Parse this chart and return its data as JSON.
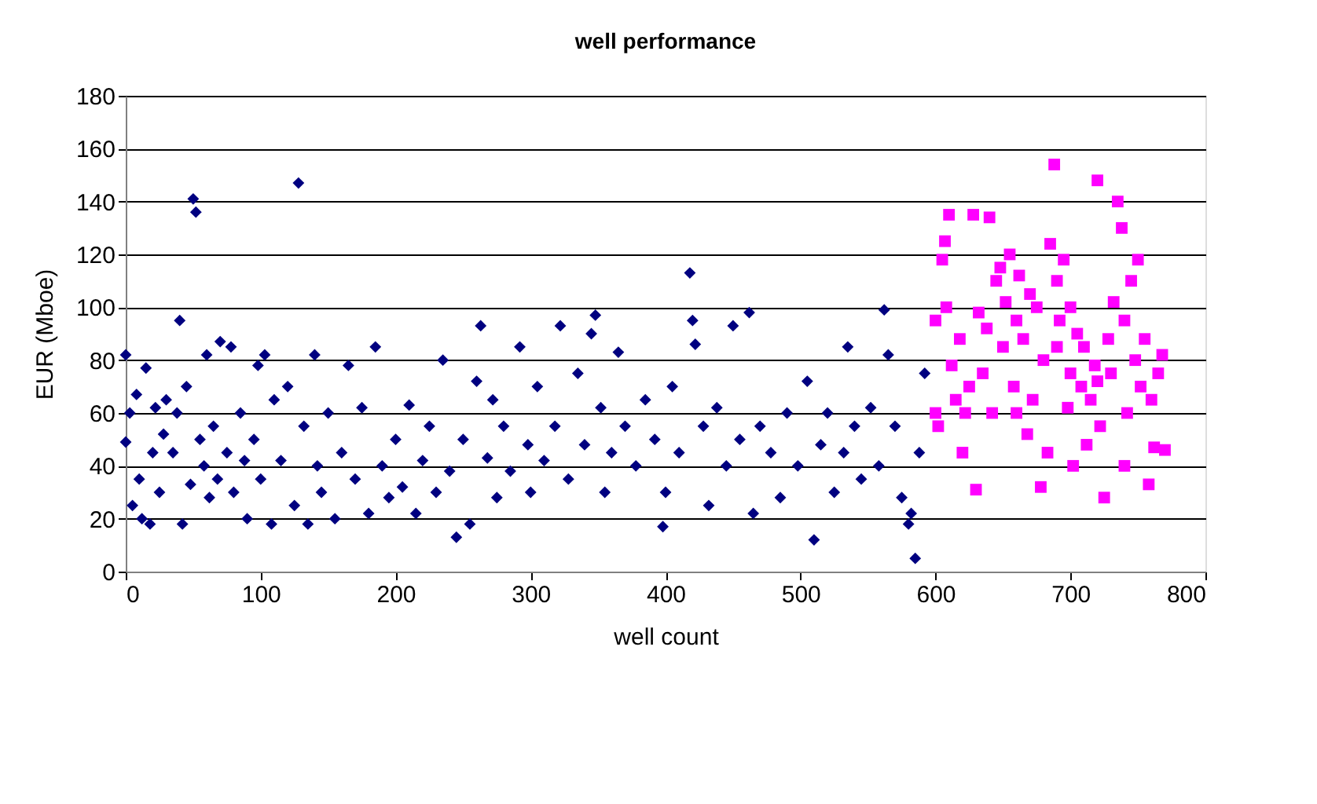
{
  "chart_data": {
    "type": "scatter",
    "title": "well performance",
    "xlabel": "well count",
    "ylabel": "EUR (Mboe)",
    "xlim": [
      0,
      800
    ],
    "xticks": [
      0,
      100,
      200,
      300,
      400,
      500,
      600,
      700,
      800
    ],
    "ylim": [
      0,
      180
    ],
    "yticks": [
      0,
      20,
      40,
      60,
      80,
      100,
      120,
      140,
      160,
      180
    ],
    "grid": "y",
    "series": [
      {
        "color": "#000080",
        "marker": "diamond",
        "x": [
          0,
          0,
          3,
          5,
          8,
          10,
          12,
          15,
          18,
          20,
          22,
          25,
          28,
          30,
          35,
          38,
          40,
          42,
          45,
          48,
          50,
          52,
          55,
          58,
          60,
          62,
          65,
          68,
          70,
          75,
          78,
          80,
          85,
          88,
          90,
          95,
          98,
          100,
          103,
          108,
          110,
          115,
          120,
          125,
          128,
          132,
          135,
          140,
          142,
          145,
          150,
          155,
          160,
          165,
          170,
          175,
          180,
          185,
          190,
          195,
          200,
          205,
          210,
          215,
          220,
          225,
          230,
          235,
          240,
          245,
          250,
          255,
          260,
          263,
          268,
          272,
          275,
          280,
          285,
          292,
          298,
          300,
          305,
          310,
          318,
          322,
          328,
          335,
          340,
          345,
          348,
          352,
          355,
          360,
          365,
          370,
          378,
          385,
          392,
          398,
          400,
          405,
          410,
          418,
          420,
          422,
          428,
          432,
          438,
          445,
          450,
          455,
          462,
          465,
          470,
          478,
          485,
          490,
          498,
          505,
          510,
          515,
          520,
          525,
          532,
          535,
          540,
          545,
          552,
          558,
          562,
          565,
          570,
          575,
          580,
          582,
          585,
          588,
          592
        ],
        "values": [
          82,
          49,
          60,
          25,
          67,
          35,
          20,
          77,
          18,
          45,
          62,
          30,
          52,
          65,
          45,
          60,
          95,
          18,
          70,
          33,
          141,
          136,
          50,
          40,
          82,
          28,
          55,
          35,
          87,
          45,
          85,
          30,
          60,
          42,
          20,
          50,
          78,
          35,
          82,
          18,
          65,
          42,
          70,
          25,
          147,
          55,
          18,
          82,
          40,
          30,
          60,
          20,
          45,
          78,
          35,
          62,
          22,
          85,
          40,
          28,
          50,
          32,
          63,
          22,
          42,
          55,
          30,
          80,
          38,
          13,
          50,
          18,
          72,
          93,
          43,
          65,
          28,
          55,
          38,
          85,
          48,
          30,
          70,
          42,
          55,
          93,
          35,
          75,
          48,
          90,
          97,
          62,
          30,
          45,
          83,
          55,
          40,
          65,
          50,
          17,
          30,
          70,
          45,
          113,
          95,
          86,
          55,
          25,
          62,
          40,
          93,
          50,
          98,
          22,
          55,
          45,
          28,
          60,
          40,
          72,
          12,
          48,
          60,
          30,
          45,
          85,
          55,
          35,
          62,
          40,
          99,
          82,
          55,
          28,
          18,
          22,
          5,
          45,
          75
        ]
      },
      {
        "color": "#ff00ff",
        "marker": "square",
        "x": [
          600,
          602,
          605,
          607,
          608,
          610,
          612,
          615,
          618,
          620,
          622,
          625,
          628,
          630,
          632,
          635,
          638,
          640,
          642,
          645,
          648,
          650,
          652,
          655,
          658,
          660,
          662,
          665,
          668,
          670,
          672,
          675,
          678,
          680,
          683,
          685,
          688,
          690,
          692,
          695,
          698,
          700,
          702,
          705,
          708,
          710,
          712,
          715,
          718,
          720,
          722,
          725,
          728,
          730,
          732,
          735,
          738,
          740,
          742,
          745,
          748,
          750,
          752,
          755,
          758,
          760,
          762,
          765,
          768,
          770,
          700,
          690,
          660,
          720,
          740,
          600
        ],
        "values": [
          95,
          55,
          118,
          125,
          100,
          135,
          78,
          65,
          88,
          45,
          60,
          70,
          135,
          31,
          98,
          75,
          92,
          134,
          60,
          110,
          115,
          85,
          102,
          120,
          70,
          95,
          112,
          88,
          52,
          105,
          65,
          100,
          32,
          80,
          45,
          124,
          154,
          110,
          95,
          118,
          62,
          75,
          40,
          90,
          70,
          85,
          48,
          65,
          78,
          148,
          55,
          28,
          88,
          75,
          102,
          140,
          130,
          95,
          60,
          110,
          80,
          118,
          70,
          88,
          33,
          65,
          47,
          75,
          82,
          46,
          100,
          85,
          60,
          72,
          40,
          60
        ]
      }
    ]
  }
}
